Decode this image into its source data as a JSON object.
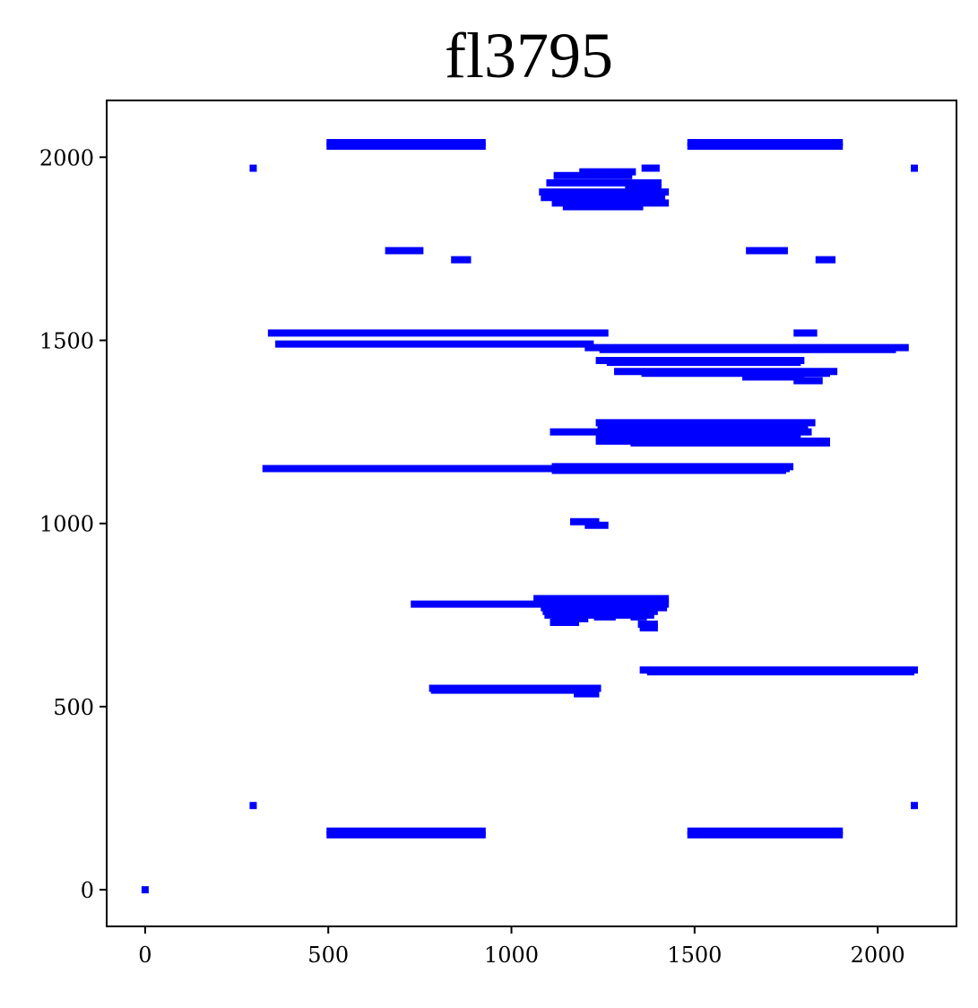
{
  "chart_data": {
    "type": "scatter",
    "title": "fl3795",
    "xlabel": "",
    "ylabel": "",
    "xlim": [
      -105,
      2215
    ],
    "ylim": [
      -100,
      2155
    ],
    "xticks": [
      0,
      500,
      1000,
      1500,
      2000
    ],
    "yticks": [
      0,
      500,
      1000,
      1500,
      2000
    ],
    "xtick_labels": [
      "0",
      "500",
      "1000",
      "1500",
      "2000"
    ],
    "ytick_labels": [
      "0",
      "500",
      "1000",
      "1500",
      "2000"
    ],
    "grid": false,
    "legend": "none",
    "marker": "square",
    "color": "#0000ff",
    "segments": [
      [
        505,
        2040,
        920,
        2040
      ],
      [
        505,
        2030,
        920,
        2030
      ],
      [
        1490,
        2040,
        1895,
        2040
      ],
      [
        1490,
        2030,
        1895,
        2030
      ],
      [
        505,
        160,
        920,
        160
      ],
      [
        505,
        150,
        920,
        150
      ],
      [
        1490,
        160,
        1895,
        160
      ],
      [
        1490,
        150,
        1895,
        150
      ],
      [
        1125,
        1950,
        1320,
        1950
      ],
      [
        1105,
        1930,
        1400,
        1930
      ],
      [
        1085,
        1905,
        1420,
        1905
      ],
      [
        1090,
        1890,
        1410,
        1890
      ],
      [
        1120,
        1875,
        1420,
        1875
      ],
      [
        1150,
        1865,
        1350,
        1865
      ],
      [
        1195,
        1960,
        1330,
        1960
      ],
      [
        1365,
        1970,
        1395,
        1970
      ],
      [
        1320,
        1915,
        1400,
        1915
      ],
      [
        665,
        1745,
        750,
        1745
      ],
      [
        845,
        1720,
        880,
        1720
      ],
      [
        1650,
        1745,
        1745,
        1745
      ],
      [
        1840,
        1720,
        1875,
        1720
      ],
      [
        345,
        1520,
        1255,
        1520
      ],
      [
        1780,
        1520,
        1825,
        1520
      ],
      [
        365,
        1490,
        1215,
        1490
      ],
      [
        1210,
        1480,
        2075,
        1480
      ],
      [
        1250,
        1475,
        2040,
        1475
      ],
      [
        1240,
        1445,
        1790,
        1445
      ],
      [
        1270,
        1440,
        1780,
        1440
      ],
      [
        1290,
        1415,
        1880,
        1415
      ],
      [
        1365,
        1410,
        1860,
        1410
      ],
      [
        1640,
        1400,
        1790,
        1400
      ],
      [
        1780,
        1390,
        1840,
        1390
      ],
      [
        1240,
        1275,
        1820,
        1275
      ],
      [
        1245,
        1265,
        1800,
        1265
      ],
      [
        1245,
        1255,
        1800,
        1255
      ],
      [
        1115,
        1250,
        1810,
        1250
      ],
      [
        1240,
        1235,
        1780,
        1235
      ],
      [
        1240,
        1225,
        1860,
        1225
      ],
      [
        1335,
        1220,
        1860,
        1220
      ],
      [
        330,
        1150,
        1750,
        1150
      ],
      [
        1120,
        1155,
        1760,
        1155
      ],
      [
        1120,
        1145,
        1740,
        1145
      ],
      [
        1170,
        1005,
        1230,
        1005
      ],
      [
        1210,
        995,
        1255,
        995
      ],
      [
        735,
        780,
        1420,
        780
      ],
      [
        1070,
        795,
        1420,
        795
      ],
      [
        1080,
        785,
        1410,
        785
      ],
      [
        1090,
        770,
        1415,
        770
      ],
      [
        1095,
        760,
        1390,
        760
      ],
      [
        1100,
        750,
        1380,
        750
      ],
      [
        1120,
        740,
        1200,
        740
      ],
      [
        1115,
        730,
        1175,
        730
      ],
      [
        1235,
        745,
        1275,
        745
      ],
      [
        1280,
        755,
        1305,
        755
      ],
      [
        1335,
        745,
        1360,
        745
      ],
      [
        1355,
        725,
        1390,
        725
      ],
      [
        1360,
        715,
        1390,
        715
      ],
      [
        1360,
        600,
        2100,
        600
      ],
      [
        1380,
        595,
        2090,
        595
      ],
      [
        785,
        550,
        1235,
        550
      ],
      [
        790,
        545,
        1225,
        545
      ],
      [
        1180,
        535,
        1230,
        535
      ]
    ],
    "points": [
      [
        0,
        0
      ],
      [
        295,
        1970
      ],
      [
        2100,
        1970
      ],
      [
        295,
        230
      ],
      [
        2100,
        230
      ]
    ]
  }
}
